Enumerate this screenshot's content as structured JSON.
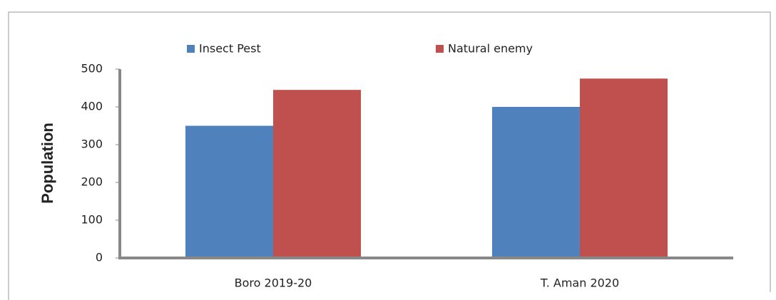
{
  "chart_data": {
    "type": "bar",
    "categories": [
      "Boro 2019-20",
      "T. Aman 2020"
    ],
    "series": [
      {
        "name": "Insect Pest",
        "color": "#4f81bd",
        "values": [
          350,
          400
        ]
      },
      {
        "name": "Natural enemy",
        "color": "#c0504d",
        "values": [
          445,
          475
        ]
      }
    ],
    "y_label": "Population",
    "ylim": [
      0,
      500
    ],
    "yticks": [
      0,
      100,
      200,
      300,
      400,
      500
    ]
  }
}
